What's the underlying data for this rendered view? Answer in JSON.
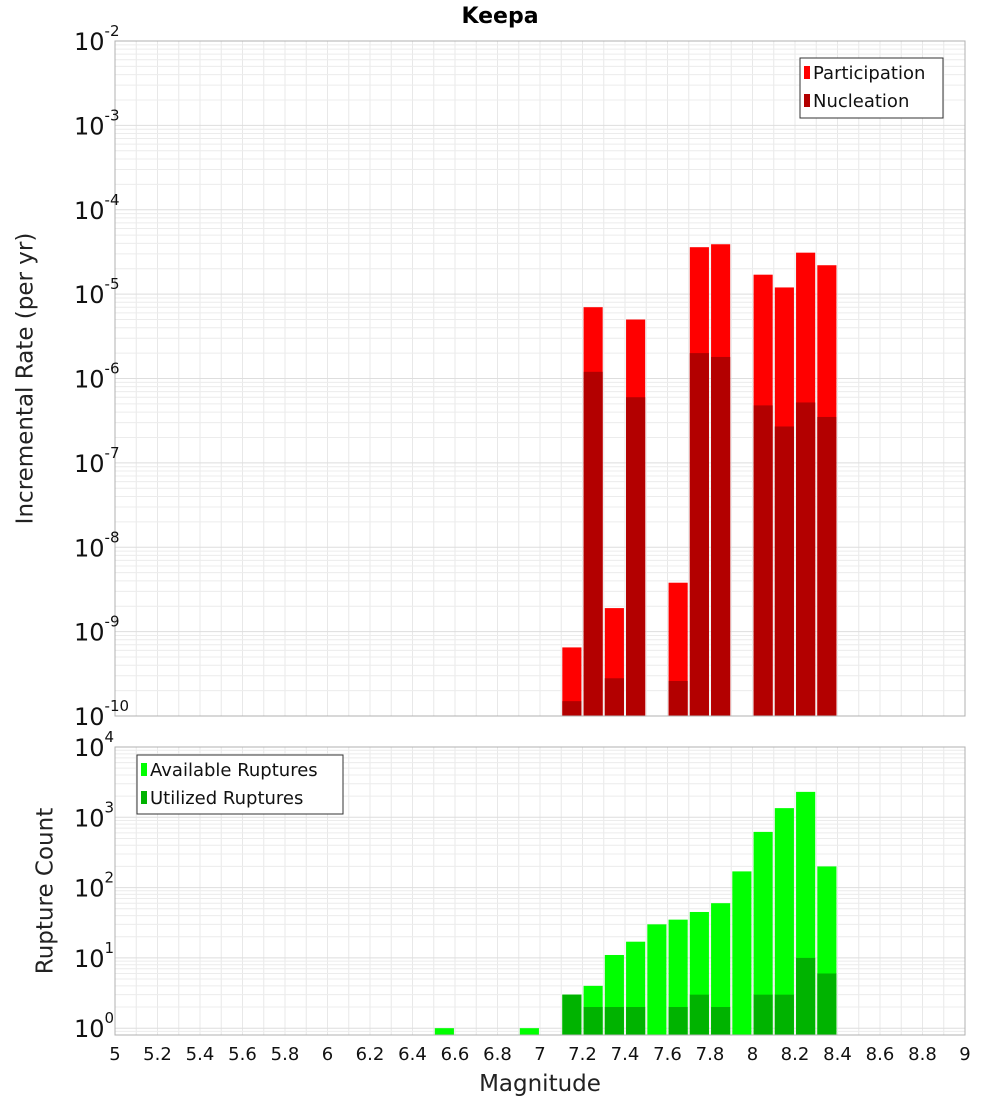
{
  "title": "Keepa",
  "xlabel": "Magnitude",
  "x_ticks": [
    "5",
    "5.2",
    "5.4",
    "5.6",
    "5.8",
    "6",
    "6.2",
    "6.4",
    "6.6",
    "6.8",
    "7",
    "7.2",
    "7.4",
    "7.6",
    "7.8",
    "8",
    "8.2",
    "8.4",
    "8.6",
    "8.8",
    "9"
  ],
  "chart_data": [
    {
      "type": "bar",
      "title": "Keepa",
      "ylabel": "Incremental Rate (per yr)",
      "yscale": "log",
      "ylim": [
        1e-10,
        0.01
      ],
      "xlim": [
        5,
        9
      ],
      "y_tick_labels": [
        {
          "base": "10",
          "exp": "-2"
        },
        {
          "base": "10",
          "exp": "-3"
        },
        {
          "base": "10",
          "exp": "-4"
        },
        {
          "base": "10",
          "exp": "-5"
        },
        {
          "base": "10",
          "exp": "-6"
        },
        {
          "base": "10",
          "exp": "-7"
        },
        {
          "base": "10",
          "exp": "-8"
        },
        {
          "base": "10",
          "exp": "-9"
        },
        {
          "base": "10",
          "exp": "-10"
        }
      ],
      "grid": true,
      "legend_position": "top-right",
      "x": [
        7.15,
        7.25,
        7.35,
        7.45,
        7.65,
        7.75,
        7.85,
        8.05,
        8.15,
        8.25,
        8.35
      ],
      "series": [
        {
          "name": "Participation",
          "color": "#ff0000",
          "values": [
            6.5e-10,
            7e-06,
            1.9e-09,
            5e-06,
            3.8e-09,
            3.6e-05,
            3.9e-05,
            1.7e-05,
            1.2e-05,
            3.1e-05,
            2.2e-05
          ]
        },
        {
          "name": "Nucleation",
          "color": "#b30000",
          "values": [
            1.5e-10,
            1.2e-06,
            2.8e-10,
            6e-07,
            2.6e-10,
            2e-06,
            1.8e-06,
            4.8e-07,
            2.7e-07,
            5.2e-07,
            3.5e-07
          ]
        }
      ]
    },
    {
      "type": "bar",
      "ylabel": "Rupture Count",
      "yscale": "log",
      "ylim": [
        0.8,
        10000.0
      ],
      "xlim": [
        5,
        9
      ],
      "y_tick_labels": [
        {
          "base": "10",
          "exp": "4"
        },
        {
          "base": "10",
          "exp": "3"
        },
        {
          "base": "10",
          "exp": "2"
        },
        {
          "base": "10",
          "exp": "1"
        },
        {
          "base": "10",
          "exp": "0"
        }
      ],
      "grid": true,
      "legend_position": "top-left",
      "x": [
        6.55,
        6.95,
        7.15,
        7.25,
        7.35,
        7.45,
        7.55,
        7.65,
        7.75,
        7.85,
        7.95,
        8.05,
        8.15,
        8.25,
        8.35
      ],
      "series": [
        {
          "name": "Available Ruptures",
          "color": "#00ff00",
          "values": [
            1,
            1,
            3,
            4,
            11,
            17,
            30,
            35,
            45,
            60,
            170,
            620,
            1350,
            2300,
            200
          ]
        },
        {
          "name": "Utilized Ruptures",
          "color": "#00b300",
          "values": [
            0,
            0,
            3,
            2,
            2,
            2,
            0,
            2,
            3,
            2,
            0,
            3,
            3,
            10,
            6
          ]
        }
      ]
    }
  ]
}
